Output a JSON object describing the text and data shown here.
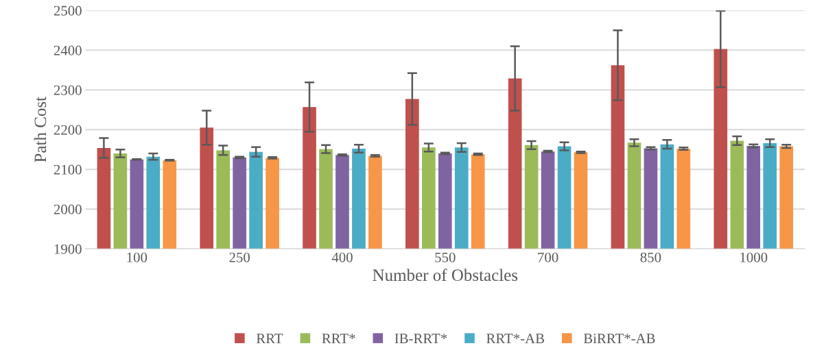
{
  "chart_data": {
    "type": "bar",
    "xlabel": "Number of Obstacles",
    "ylabel": "Path Cost",
    "categories": [
      "100",
      "250",
      "400",
      "550",
      "700",
      "850",
      "1000"
    ],
    "ylim": [
      1900,
      2500
    ],
    "yticks": [
      1900,
      2000,
      2100,
      2200,
      2300,
      2400,
      2500
    ],
    "grid": "y",
    "legend": "bottom",
    "series": [
      {
        "name": "RRT",
        "color": "#c0504d",
        "values": [
          2154,
          2205,
          2257,
          2277,
          2329,
          2362,
          2403
        ],
        "errors": [
          25,
          43,
          62,
          65,
          81,
          88,
          96
        ]
      },
      {
        "name": "RRT*",
        "color": "#9bbb59",
        "values": [
          2140,
          2148,
          2151,
          2155,
          2161,
          2167,
          2172
        ],
        "errors": [
          10,
          12,
          10,
          10,
          10,
          9,
          11
        ]
      },
      {
        "name": "IB-RRT*",
        "color": "#8064a2",
        "values": [
          2125,
          2130,
          2136,
          2140,
          2145,
          2153,
          2159
        ],
        "errors": [
          1,
          2,
          2,
          2,
          2,
          3,
          4
        ]
      },
      {
        "name": "RRT*-AB",
        "color": "#4bacc6",
        "values": [
          2132,
          2144,
          2152,
          2155,
          2158,
          2163,
          2166
        ],
        "errors": [
          8,
          12,
          10,
          11,
          10,
          11,
          10
        ]
      },
      {
        "name": "BiRRT*-AB",
        "color": "#f79646",
        "values": [
          2123,
          2129,
          2134,
          2138,
          2143,
          2152,
          2158
        ],
        "errors": [
          1,
          2,
          2,
          2,
          2,
          3,
          4
        ]
      }
    ]
  }
}
